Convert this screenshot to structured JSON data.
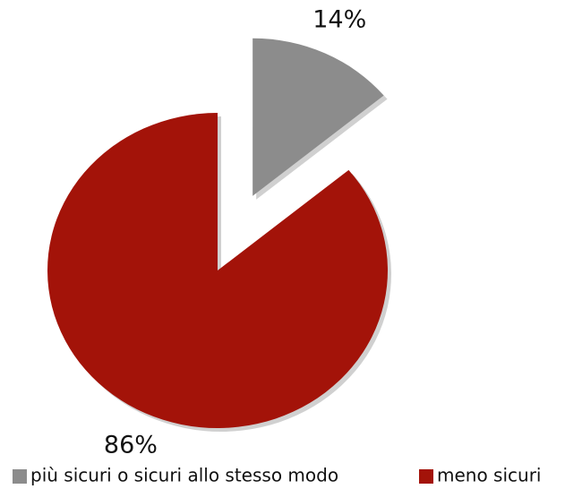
{
  "chart_data": {
    "type": "pie",
    "categories": [
      "più sicuri o sicuri allo stesso modo",
      "meno sicuri"
    ],
    "values": [
      14,
      86
    ],
    "value_labels": [
      "14%",
      "86%"
    ],
    "colors": [
      "#8c8c8c",
      "#a31309"
    ],
    "legend": "bottom"
  }
}
